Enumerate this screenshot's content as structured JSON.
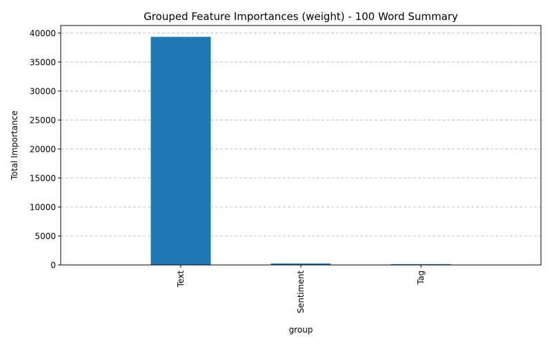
{
  "chart_data": {
    "type": "bar",
    "title": "Grouped Feature Importances (weight) - 100 Word Summary",
    "xlabel": "group",
    "ylabel": "Total Importance",
    "categories": [
      "Text",
      "Sentiment",
      "Tag"
    ],
    "values": [
      39350,
      260,
      140
    ],
    "ylim": [
      0,
      41300
    ],
    "yticks": [
      0,
      5000,
      10000,
      15000,
      20000,
      25000,
      30000,
      35000,
      40000
    ],
    "grid": "y, dashed",
    "bar_color": "#1f77b4",
    "legend": "none"
  }
}
